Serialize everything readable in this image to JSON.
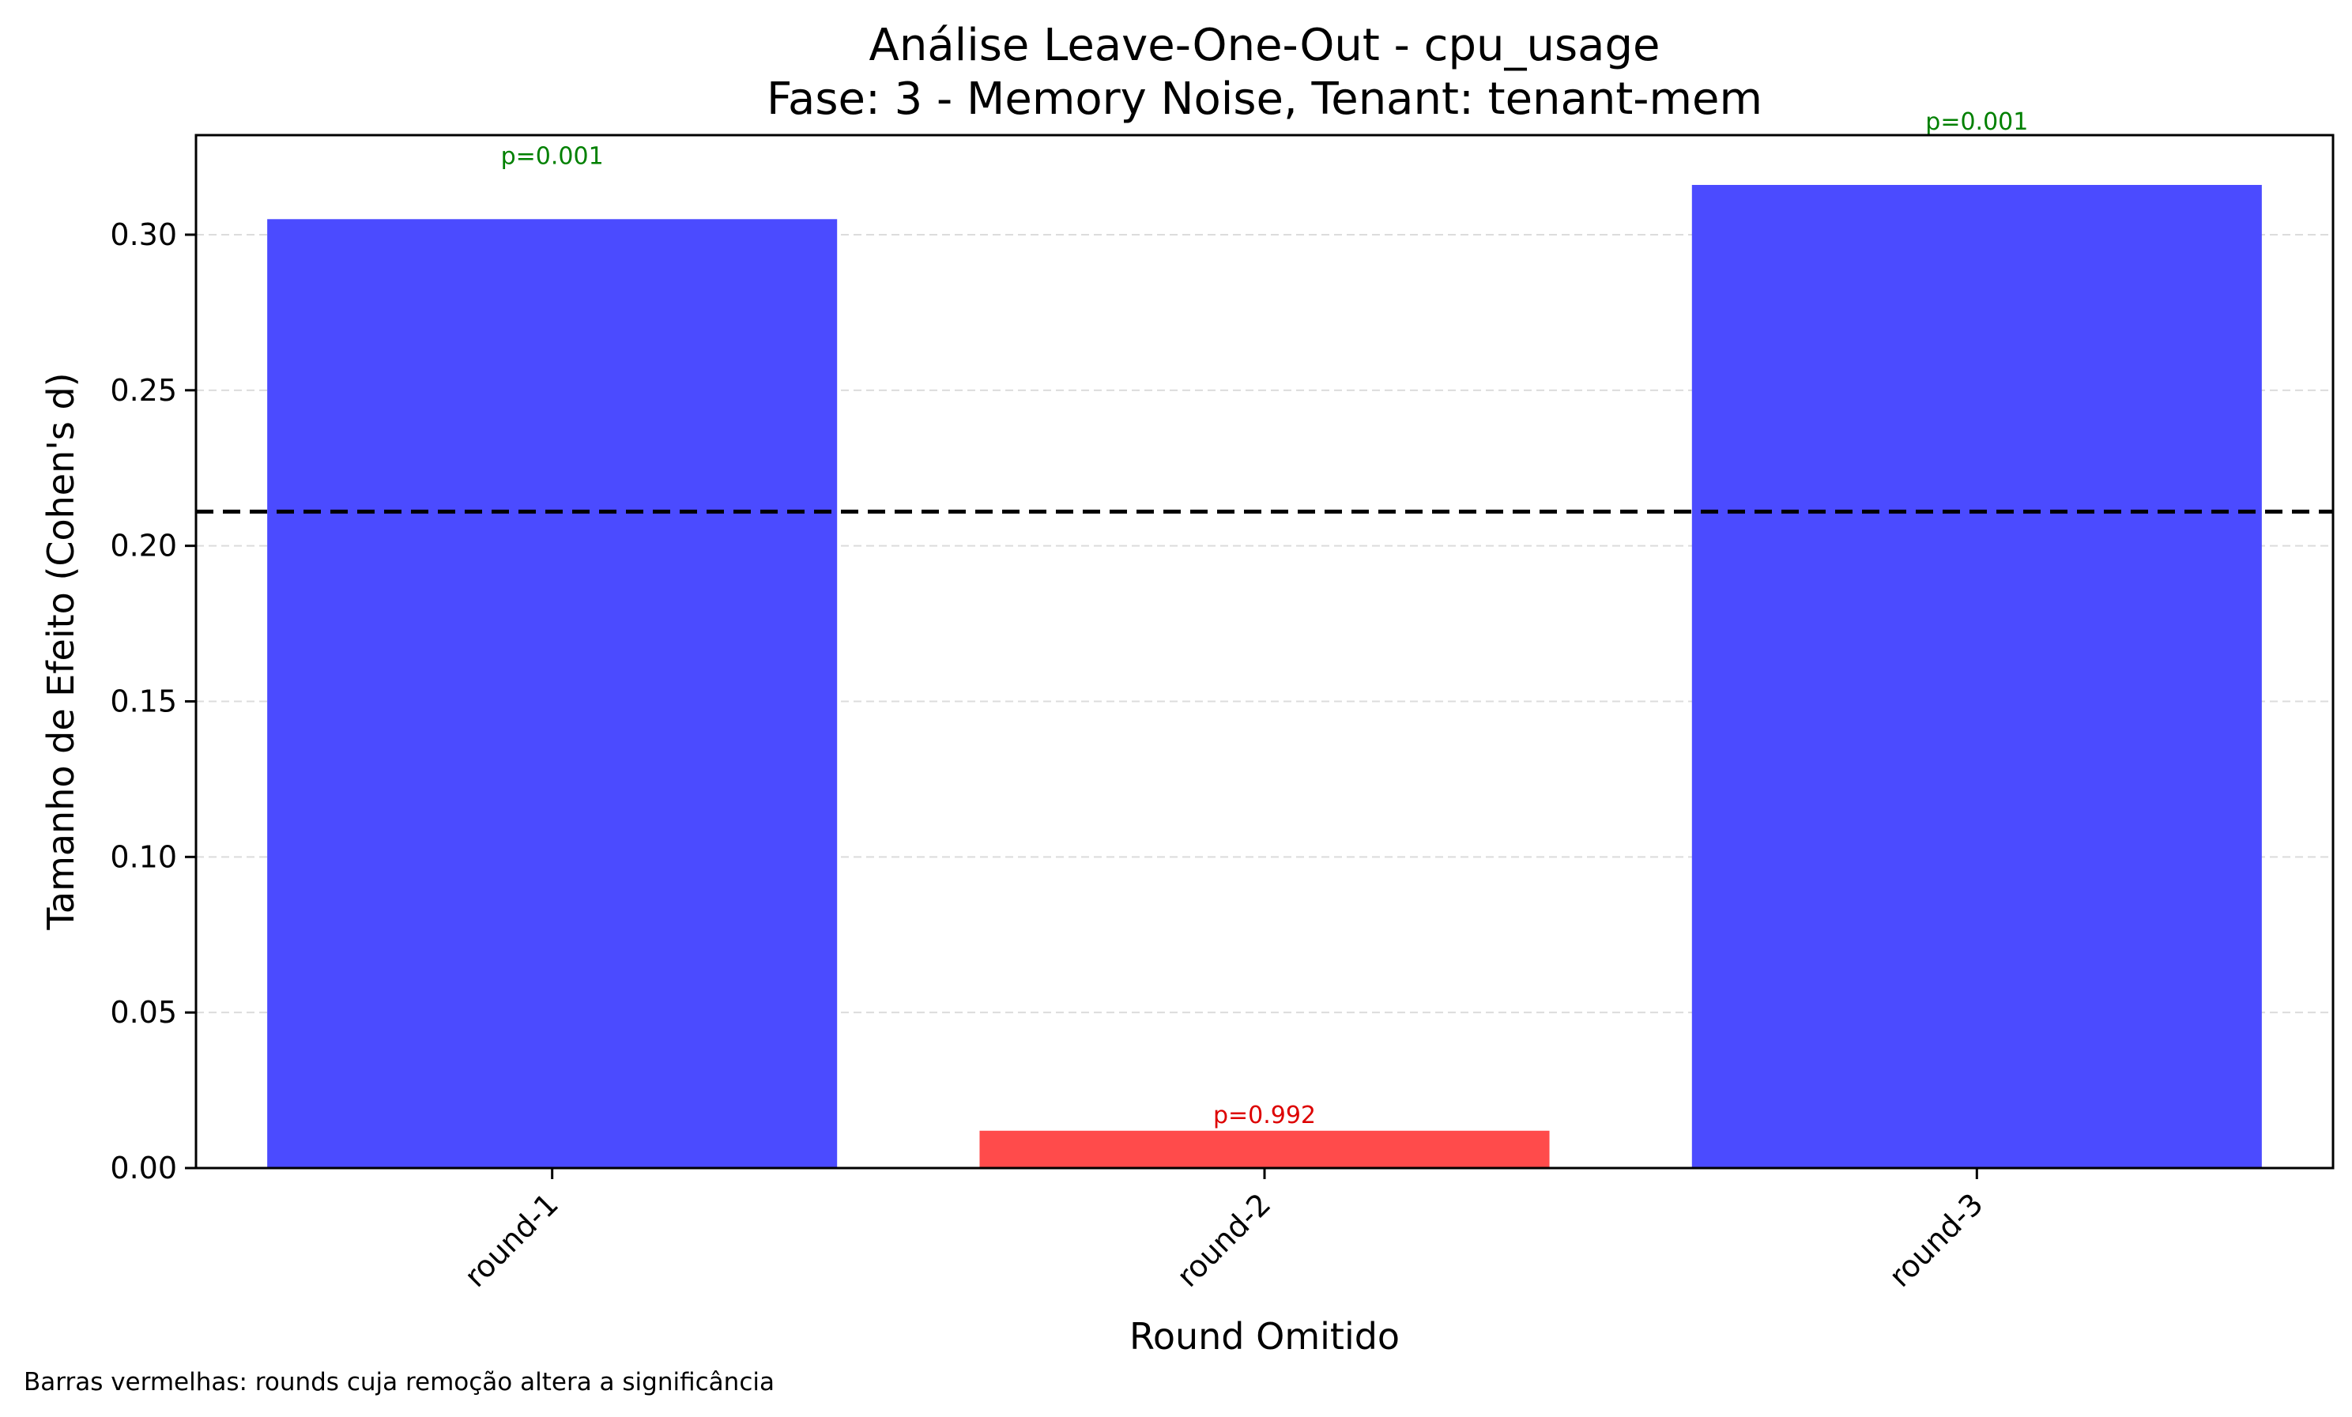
{
  "chart_data": {
    "type": "bar",
    "title": "Análise Leave-One-Out - cpu_usage",
    "subtitle": "Fase: 3 - Memory Noise, Tenant: tenant-mem",
    "xlabel": "Round Omitido",
    "ylabel": "Tamanho de Efeito (Cohen's d)",
    "categories": [
      "round-1",
      "round-2",
      "round-3"
    ],
    "values": [
      0.305,
      0.012,
      0.316
    ],
    "p_labels": [
      "p=0.001",
      "p=0.992",
      "p=0.001"
    ],
    "bar_colors": [
      "#4b4bff",
      "#ff4b4b",
      "#4b4bff"
    ],
    "p_label_colors": [
      "#008000",
      "#dd0000",
      "#008000"
    ],
    "reference_line": 0.211,
    "ylim": [
      0,
      0.332
    ],
    "yticks": [
      "0.00",
      "0.05",
      "0.10",
      "0.15",
      "0.20",
      "0.25",
      "0.30"
    ],
    "ytick_values": [
      0,
      0.05,
      0.1,
      0.15,
      0.2,
      0.25,
      0.3
    ],
    "grid": "y-dashed",
    "footnote": "Barras vermelhas: rounds cuja remoção altera a significância"
  }
}
